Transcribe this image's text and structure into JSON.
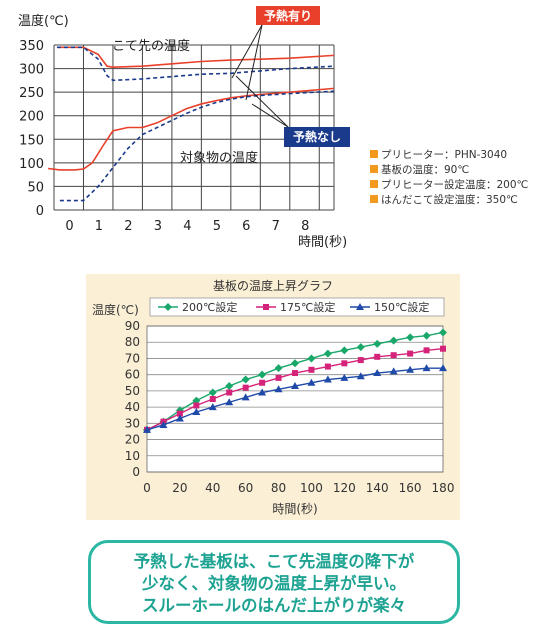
{
  "chart_data": [
    {
      "type": "line",
      "ylabel": "温度(℃)",
      "xlabel": "時間(秒)",
      "ylim": [
        0,
        350
      ],
      "xlim": [
        -1,
        8.5
      ],
      "yticks": [
        0,
        50,
        100,
        150,
        200,
        250,
        300,
        350
      ],
      "xticks": [
        0,
        1,
        2,
        3,
        4,
        5,
        6,
        7,
        8
      ],
      "grid": true,
      "colors": {
        "with_preheat": "#e8402a",
        "without_preheat": "#1a3a8c"
      },
      "annotations": {
        "tip_temp": "こて先の温度",
        "object_temp": "対象物の温度",
        "with_preheat": "予熱有り",
        "without_preheat": "予熱なし"
      },
      "series": [
        {
          "name": "予熱有り",
          "group": "こて先の温度",
          "style": "solid",
          "x": [
            -0.9,
            -0.3,
            0,
            0.5,
            0.8,
            1,
            2,
            3,
            4,
            5,
            6,
            7,
            8.5
          ],
          "values": [
            345,
            345,
            345,
            330,
            305,
            303,
            305,
            310,
            315,
            318,
            320,
            322,
            328
          ]
        },
        {
          "name": "予熱なし",
          "group": "こて先の温度",
          "style": "dashed",
          "x": [
            -0.9,
            -0.3,
            0,
            0.5,
            0.8,
            1,
            2,
            3,
            4,
            5,
            6,
            7,
            8.5
          ],
          "values": [
            345,
            345,
            345,
            320,
            285,
            275,
            278,
            283,
            288,
            290,
            295,
            300,
            305
          ]
        },
        {
          "name": "予熱有り",
          "group": "対象物の温度",
          "style": "solid",
          "x": [
            -1.2,
            -0.8,
            -0.3,
            0,
            0.3,
            0.7,
            1,
            1.5,
            2,
            2.5,
            3,
            3.5,
            4,
            4.5,
            5,
            5.5,
            6,
            7,
            8.5
          ],
          "values": [
            88,
            85,
            85,
            87,
            100,
            140,
            168,
            175,
            175,
            185,
            200,
            215,
            225,
            232,
            238,
            242,
            245,
            250,
            258
          ]
        },
        {
          "name": "予熱なし",
          "group": "対象物の温度",
          "style": "dashed",
          "x": [
            -0.8,
            -0.3,
            0,
            0.5,
            1,
            1.5,
            2,
            2.5,
            3,
            3.5,
            4,
            4.5,
            5,
            5.5,
            6,
            7,
            8.5
          ],
          "values": [
            20,
            20,
            20,
            50,
            90,
            130,
            160,
            175,
            190,
            205,
            218,
            228,
            235,
            240,
            243,
            247,
            252
          ]
        }
      ]
    },
    {
      "type": "line",
      "title": "基板の温度上昇グラフ",
      "ylabel": "温度(℃)",
      "xlabel": "時間(秒)",
      "ylim": [
        0,
        90
      ],
      "xlim": [
        0,
        180
      ],
      "yticks": [
        0,
        10,
        20,
        30,
        40,
        50,
        60,
        70,
        80,
        90
      ],
      "xticks": [
        0,
        20,
        40,
        60,
        80,
        100,
        120,
        140,
        160,
        180
      ],
      "grid": true,
      "legend": "top",
      "x": [
        0,
        10,
        20,
        30,
        40,
        50,
        60,
        70,
        80,
        90,
        100,
        110,
        120,
        130,
        140,
        150,
        160,
        170,
        180
      ],
      "series": [
        {
          "name": "200℃設定",
          "color": "#1aa86a",
          "marker": "diamond",
          "values": [
            26,
            31,
            38,
            44,
            49,
            53,
            57,
            60,
            64,
            67,
            70,
            73,
            75,
            77,
            79,
            81,
            83,
            84,
            86
          ]
        },
        {
          "name": "175℃設定",
          "color": "#d6237a",
          "marker": "square",
          "values": [
            26,
            31,
            36,
            41,
            45,
            49,
            52,
            55,
            58,
            61,
            63,
            65,
            67,
            69,
            71,
            72,
            73,
            75,
            76
          ]
        },
        {
          "name": "150℃設定",
          "color": "#1f4aa8",
          "marker": "triangle",
          "values": [
            26,
            29,
            33,
            37,
            40,
            43,
            46,
            49,
            51,
            53,
            55,
            57,
            58,
            59,
            61,
            62,
            63,
            64,
            64
          ]
        }
      ]
    }
  ],
  "notes": [
    {
      "label": "プリヒーター",
      "value": "：PHN-3040"
    },
    {
      "label": "基板の温度",
      "value": "：90℃"
    },
    {
      "label": "プリヒーター設定温度",
      "value": "：200℃"
    },
    {
      "label": "はんだこて設定温度",
      "value": "：350℃"
    }
  ],
  "callout": {
    "line1": "予熱した基板は、こて先温度の降下が",
    "line2": "少なく、対象物の温度上昇が早い。",
    "line3": "スルーホールのはんだ上がりが楽々"
  },
  "colors": {
    "note_bullet": "#f39a1e",
    "callout": "#1ea393",
    "panel_bg": "#fbf0d6"
  }
}
